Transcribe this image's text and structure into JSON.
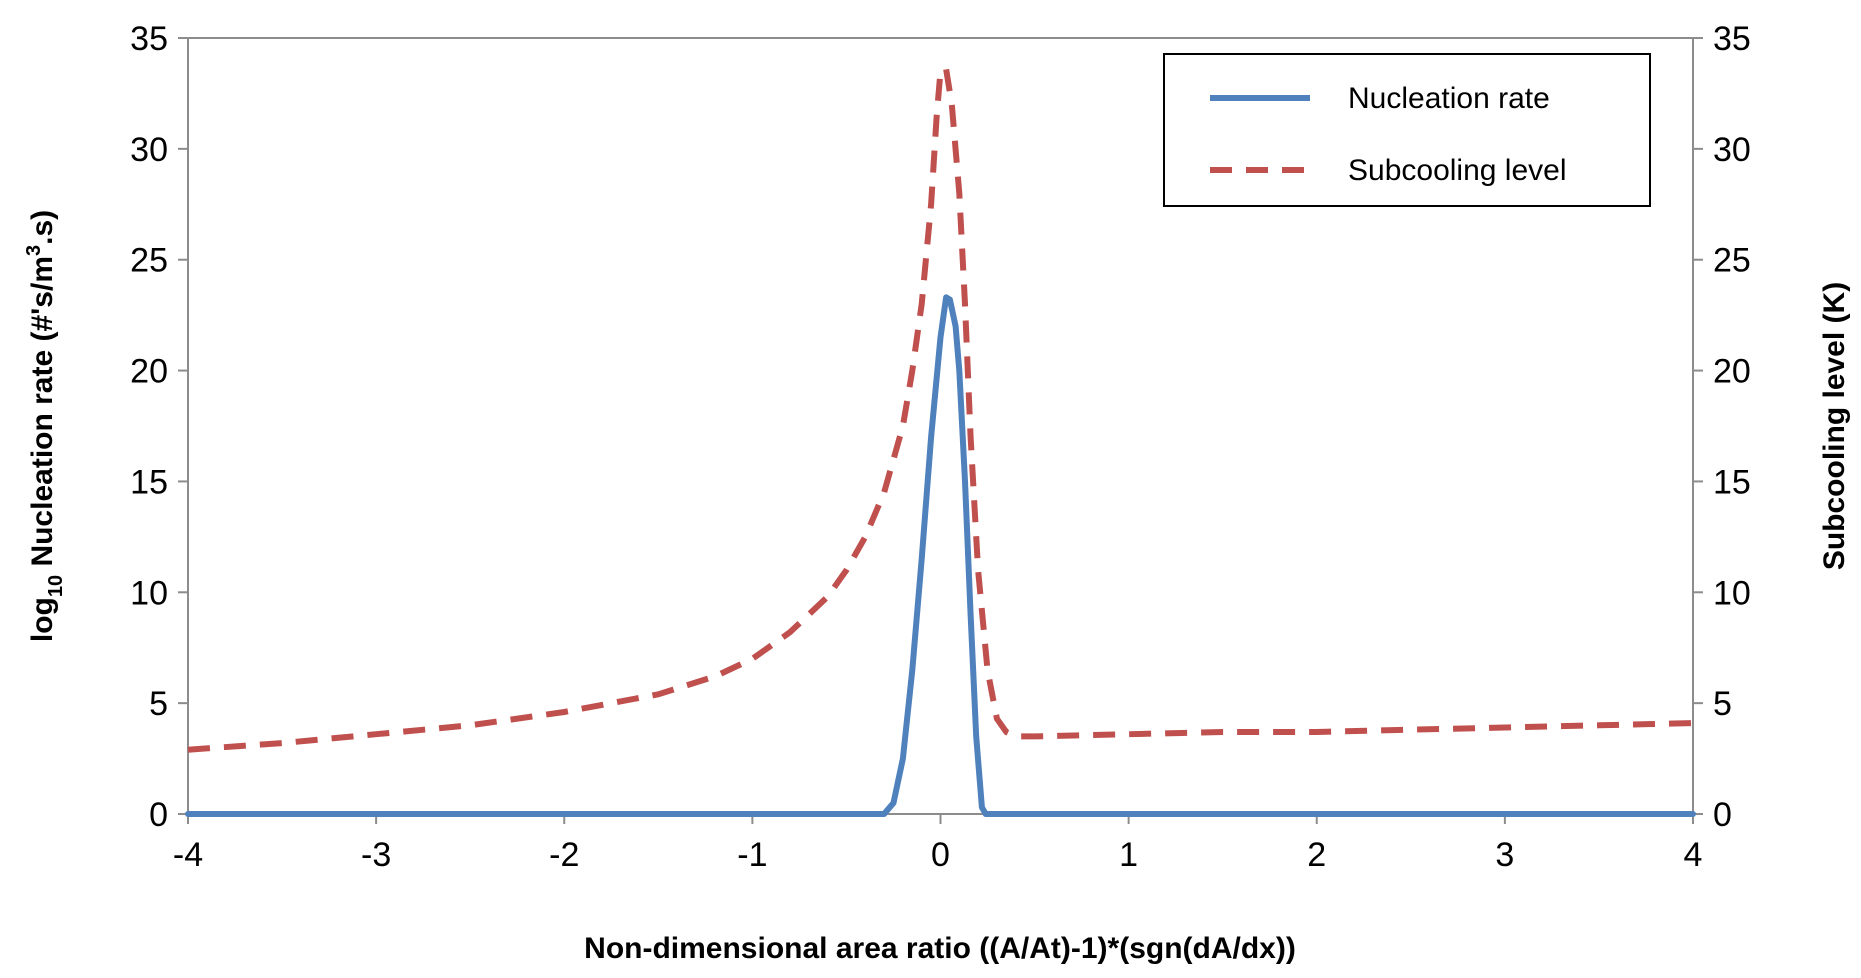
{
  "chart_data": {
    "type": "line",
    "title": "",
    "xlabel": "Non-dimensional area ratio ((A/At)-1)*(sgn(dA/dx))",
    "ylabel_left": {
      "prefix": "log",
      "subscript": "10",
      "main": " Nucleation rate (#'s/m",
      "superscript": "3",
      "suffix": ".s)"
    },
    "ylabel_right": "Subcooling level (K)",
    "xlim": [
      -4,
      4
    ],
    "ylim_left": [
      0,
      35
    ],
    "ylim_right": [
      0,
      35
    ],
    "x_ticks": [
      "-4",
      "-3",
      "-2",
      "-1",
      "0",
      "1",
      "2",
      "3",
      "4"
    ],
    "y_ticks_left": [
      "0",
      "5",
      "10",
      "15",
      "20",
      "25",
      "30",
      "35"
    ],
    "y_ticks_right": [
      "0",
      "5",
      "10",
      "15",
      "20",
      "25",
      "30",
      "35"
    ],
    "legend_position": "top-right",
    "series": [
      {
        "name": "Nucleation rate",
        "axis": "left",
        "color": "#4f81bd",
        "style": "solid",
        "x": [
          -4,
          -3,
          -2,
          -1,
          -0.5,
          -0.3,
          -0.25,
          -0.2,
          -0.15,
          -0.1,
          -0.05,
          0.0,
          0.03,
          0.05,
          0.08,
          0.1,
          0.13,
          0.16,
          0.19,
          0.22,
          0.24,
          0.3,
          1,
          2,
          3,
          4
        ],
        "y": [
          0,
          0,
          0,
          0,
          0,
          0,
          0.5,
          2.5,
          6.5,
          11.5,
          17,
          21.5,
          23.3,
          23.2,
          22,
          20,
          15,
          9,
          3.5,
          0.3,
          0,
          0,
          0,
          0,
          0,
          0
        ]
      },
      {
        "name": "Subcooling level",
        "axis": "right",
        "color": "#c0504d",
        "style": "dashed",
        "x": [
          -4,
          -3.5,
          -3,
          -2.5,
          -2,
          -1.5,
          -1.2,
          -1,
          -0.8,
          -0.6,
          -0.5,
          -0.4,
          -0.3,
          -0.2,
          -0.15,
          -0.1,
          -0.05,
          -0.02,
          0.0,
          0.03,
          0.06,
          0.1,
          0.13,
          0.16,
          0.2,
          0.25,
          0.3,
          0.35,
          0.4,
          0.5,
          1,
          1.5,
          2,
          2.5,
          3,
          3.5,
          4
        ],
        "y": [
          2.9,
          3.2,
          3.6,
          4.0,
          4.6,
          5.4,
          6.2,
          7.0,
          8.2,
          9.8,
          11.0,
          12.5,
          14.5,
          17.5,
          20.0,
          23.0,
          27.5,
          31.5,
          33.5,
          33.6,
          32.0,
          28.0,
          23.0,
          17.0,
          11.0,
          6.5,
          4.3,
          3.7,
          3.5,
          3.5,
          3.6,
          3.7,
          3.7,
          3.8,
          3.9,
          4.0,
          4.1
        ]
      }
    ]
  }
}
